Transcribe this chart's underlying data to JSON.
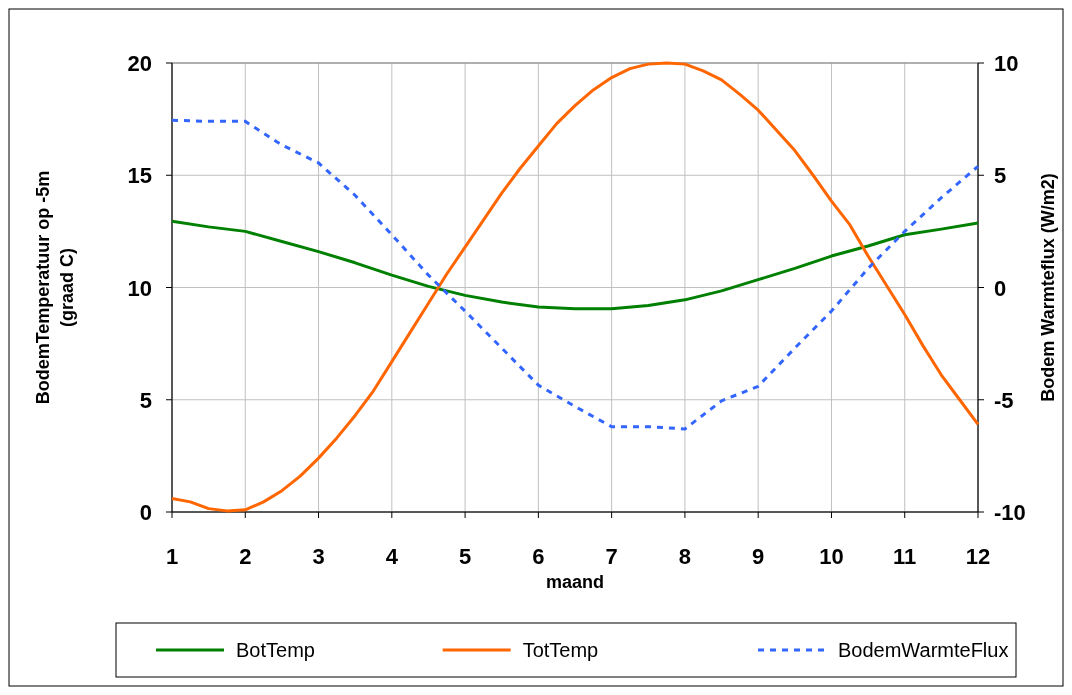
{
  "chart_data": {
    "type": "line",
    "xlabel": "maand",
    "ylabel": "BodemTemperatuur op -5m (graad C)",
    "y2label": "Bodem Warmteflux (W/m2)",
    "xlim": [
      1,
      12
    ],
    "xticks": [
      1,
      2,
      3,
      4,
      5,
      6,
      7,
      8,
      9,
      10,
      11,
      12
    ],
    "ylim": [
      0,
      20
    ],
    "yticks": [
      0,
      5,
      10,
      15,
      20
    ],
    "y2lim": [
      -10,
      10
    ],
    "y2ticks": [
      -10,
      -5,
      0,
      5,
      10
    ],
    "grid": true,
    "legend": "bottom",
    "series": [
      {
        "name": "BotTemp",
        "color": "#008000",
        "line_style": "solid",
        "x": [
          1,
          1.5,
          2,
          2.5,
          3,
          3.5,
          4,
          4.5,
          5,
          5.5,
          6,
          6.5,
          7,
          7.5,
          8,
          8.5,
          9,
          9.5,
          10,
          10.5,
          11,
          11.5,
          12
        ],
        "values": [
          12.95,
          12.7,
          12.5,
          12.05,
          11.6,
          11.1,
          10.55,
          10.05,
          9.65,
          9.35,
          9.13,
          9.05,
          9.05,
          9.2,
          9.45,
          9.85,
          10.35,
          10.85,
          11.4,
          11.85,
          12.35,
          12.6,
          12.87
        ]
      },
      {
        "name": "TotTemp",
        "color": "#ff6600",
        "line_style": "solid",
        "x": [
          1,
          1.25,
          1.5,
          1.75,
          2,
          2.25,
          2.5,
          2.75,
          3,
          3.25,
          3.5,
          3.75,
          4,
          4.25,
          4.5,
          4.75,
          5,
          5.25,
          5.5,
          5.75,
          6,
          6.25,
          6.5,
          6.75,
          7,
          7.25,
          7.5,
          7.75,
          8,
          8.25,
          8.5,
          8.75,
          9,
          9.25,
          9.5,
          9.75,
          10,
          10.25,
          10.5,
          10.75,
          11,
          11.25,
          11.5,
          11.75,
          12
        ],
        "values": [
          0.6,
          0.45,
          0.15,
          0.05,
          0.1,
          0.45,
          0.95,
          1.6,
          2.4,
          3.3,
          4.3,
          5.4,
          6.7,
          8.0,
          9.3,
          10.6,
          11.8,
          13.0,
          14.2,
          15.3,
          16.3,
          17.3,
          18.1,
          18.8,
          19.35,
          19.75,
          19.95,
          20,
          19.95,
          19.65,
          19.25,
          18.6,
          17.9,
          17.0,
          16.1,
          15.0,
          13.85,
          12.8,
          11.4,
          10.1,
          8.8,
          7.4,
          6.1,
          5.0,
          3.9
        ]
      },
      {
        "name": "BodemWarmteFlux",
        "color": "#3366ff",
        "line_style": "dashed",
        "axis": "y2",
        "x": [
          1,
          1.5,
          2,
          2.5,
          3,
          3.5,
          4,
          4.5,
          5,
          5.5,
          6,
          6.5,
          7,
          7.5,
          8,
          8.5,
          9,
          9.5,
          10,
          10.5,
          11,
          11.5,
          12
        ],
        "values": [
          7.45,
          7.4,
          7.4,
          6.35,
          5.55,
          4.1,
          2.35,
          0.55,
          -1.05,
          -2.7,
          -4.35,
          -5.3,
          -6.2,
          -6.2,
          -6.3,
          -5.05,
          -4.4,
          -2.7,
          -1.05,
          0.85,
          2.5,
          4.0,
          5.4
        ]
      }
    ]
  }
}
